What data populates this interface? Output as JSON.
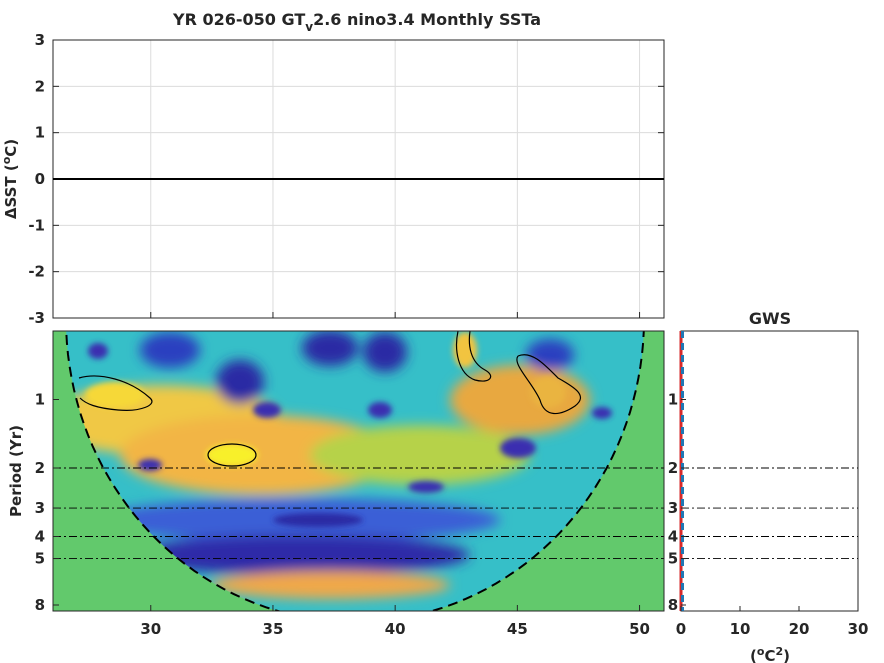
{
  "chart_data": [
    {
      "type": "line",
      "title": "YR 026-050 GT",
      "title_sub": "v",
      "title_rest": "2.6 nino3.4 Monthly SSTa",
      "ylabel_symbol": "Δ",
      "ylabel_text": "SST (",
      "ylabel_unit": "o",
      "ylabel_end": "C)",
      "xlim": [
        26,
        51
      ],
      "ylim": [
        -3,
        3
      ],
      "xticks": [
        30,
        35,
        40,
        45,
        50
      ],
      "yticks": [
        3,
        2,
        1,
        0,
        -1,
        -2,
        -3
      ],
      "grid": true,
      "series": [
        {
          "x": [
            26,
            51
          ],
          "y": [
            0,
            0
          ],
          "color": "#000000"
        }
      ]
    },
    {
      "type": "heatmap",
      "ylabel": "Period (Yr)",
      "xlim": [
        26,
        51
      ],
      "xticks": [
        "30",
        "35",
        "40",
        "45",
        "50"
      ],
      "yticks": [
        "1",
        "2",
        "3",
        "4",
        "5",
        "8"
      ],
      "ytick_values": [
        1,
        2,
        3,
        4,
        5,
        8
      ],
      "period_range": [
        0.5,
        8.5
      ],
      "scale": "log",
      "cone_of_influence": true,
      "reference_periods": [
        2,
        3,
        4,
        5
      ],
      "colors": {
        "outside_coi": "#62c96c",
        "low": "#3a2fb0",
        "mid": "#2fb5c0",
        "high": "#f5df30"
      }
    },
    {
      "type": "line",
      "title": "GWS",
      "xlabel_open": "(",
      "xlabel_unit_sup": "o",
      "xlabel_unit": "C",
      "xlabel_power_sup": "2",
      "xlabel_close": ")",
      "xlim": [
        0,
        30
      ],
      "xticks": [
        "0",
        "10",
        "20",
        "30"
      ],
      "yticks": [
        "1",
        "2",
        "3",
        "4",
        "5",
        "8"
      ],
      "reference_periods": [
        2,
        3,
        4,
        5
      ],
      "series": [
        {
          "values": [
            0,
            0
          ],
          "color": "#d62728"
        },
        {
          "values": [
            0,
            0
          ],
          "color": "#1f77b4"
        }
      ]
    }
  ]
}
